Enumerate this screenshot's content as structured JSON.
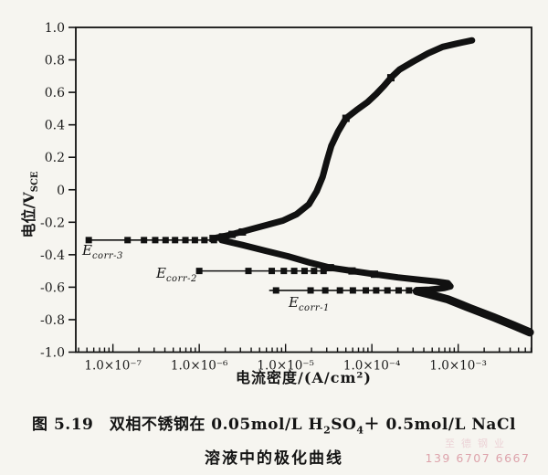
{
  "figure": {
    "caption_line1": {
      "t1": "图 5.19　双相不锈钢在 0.05mol/L H",
      "sub1": "2",
      "t2": "SO",
      "sub2": "4",
      "t3": "＋ 0.5mol/L NaCl"
    },
    "caption_line2": "溶液中的极化曲线",
    "watermark": {
      "line1": "至德钢业",
      "line2": "139 6707 6667"
    }
  },
  "chart_data": {
    "type": "line",
    "title": "",
    "xlabel": "电流密度/(A/cm²)",
    "ylabel_main": "电位/V",
    "ylabel_sub": "SCE",
    "x_scale": "log10",
    "grid": false,
    "legend": "none",
    "xlim": [
      -7.43,
      -2.15
    ],
    "ylim": [
      -1.0,
      1.0
    ],
    "x_ticks": [
      {
        "exp": -7,
        "label": "1.0×10⁻⁷"
      },
      {
        "exp": -6,
        "label": "1.0×10⁻⁶"
      },
      {
        "exp": -5,
        "label": "1.0×10⁻⁵"
      },
      {
        "exp": -4,
        "label": "1.0×10⁻⁴"
      },
      {
        "exp": -3,
        "label": "1.0×10⁻³"
      }
    ],
    "y_ticks": [
      {
        "v": 1.0,
        "label": "1.0"
      },
      {
        "v": 0.8,
        "label": "0.8"
      },
      {
        "v": 0.6,
        "label": "0.6"
      },
      {
        "v": 0.4,
        "label": "0.4"
      },
      {
        "v": 0.2,
        "label": "0.2"
      },
      {
        "v": 0.0,
        "label": "0"
      },
      {
        "v": -0.2,
        "label": "-0.2"
      },
      {
        "v": -0.4,
        "label": "-0.4"
      },
      {
        "v": -0.6,
        "label": "-0.6"
      },
      {
        "v": -0.8,
        "label": "-0.8"
      },
      {
        "v": -1.0,
        "label": "-1.0"
      }
    ],
    "series": [
      {
        "name": "ocp-line-Ecorr-3",
        "E": -0.31,
        "from": -7.28,
        "to": -5.73,
        "markers": [
          -7.28,
          -6.83,
          -6.64,
          -6.51,
          -6.39,
          -6.28,
          -6.16,
          -6.05,
          -5.94,
          -5.83
        ]
      },
      {
        "name": "ocp-line-Ecorr-2",
        "E": -0.5,
        "from": -6.0,
        "to": -4.52,
        "markers": [
          -6.0,
          -5.43,
          -5.16,
          -5.02,
          -4.9,
          -4.78,
          -4.67,
          -4.56
        ]
      },
      {
        "name": "ocp-line-Ecorr-1",
        "E": -0.62,
        "from": -5.19,
        "to": -3.48,
        "markers": [
          -5.11,
          -4.71,
          -4.54,
          -4.37,
          -4.22,
          -4.07,
          -3.95,
          -3.82,
          -3.69,
          -3.57
        ]
      },
      {
        "name": "anodic-passive-branch",
        "width": 7,
        "points": [
          [
            -5.84,
            -0.3
          ],
          [
            -5.66,
            -0.28
          ],
          [
            -5.45,
            -0.25
          ],
          [
            -5.24,
            -0.22
          ],
          [
            -5.03,
            -0.19
          ],
          [
            -4.87,
            -0.15
          ],
          [
            -4.73,
            -0.09
          ],
          [
            -4.64,
            -0.01
          ],
          [
            -4.57,
            0.08
          ],
          [
            -4.52,
            0.18
          ],
          [
            -4.47,
            0.27
          ],
          [
            -4.39,
            0.36
          ],
          [
            -4.3,
            0.44
          ],
          [
            -4.18,
            0.49
          ],
          [
            -4.05,
            0.54
          ],
          [
            -3.95,
            0.59
          ],
          [
            -3.86,
            0.64
          ],
          [
            -3.78,
            0.69
          ],
          [
            -3.68,
            0.74
          ],
          [
            -3.52,
            0.79
          ],
          [
            -3.35,
            0.84
          ],
          [
            -3.18,
            0.88
          ],
          [
            -3.02,
            0.9
          ],
          [
            -2.84,
            0.92
          ]
        ],
        "squares": [
          [
            -5.84,
            -0.3
          ],
          [
            -5.73,
            -0.29
          ],
          [
            -5.62,
            -0.275
          ],
          [
            -5.5,
            -0.26
          ],
          [
            -4.3,
            0.44
          ],
          [
            -3.78,
            0.69
          ]
        ]
      },
      {
        "name": "cathodic-branch-hairpin",
        "width": 7,
        "points": [
          [
            -5.74,
            -0.31
          ],
          [
            -5.5,
            -0.34
          ],
          [
            -5.24,
            -0.375
          ],
          [
            -4.97,
            -0.41
          ],
          [
            -4.71,
            -0.45
          ],
          [
            -4.48,
            -0.48
          ],
          [
            -4.23,
            -0.5
          ],
          [
            -3.97,
            -0.52
          ],
          [
            -3.7,
            -0.54
          ],
          [
            -3.44,
            -0.555
          ],
          [
            -3.25,
            -0.565
          ],
          [
            -3.12,
            -0.575
          ],
          [
            -3.09,
            -0.595
          ],
          [
            -3.16,
            -0.605
          ],
          [
            -3.33,
            -0.615
          ],
          [
            -3.48,
            -0.618
          ]
        ],
        "squares": [
          [
            -4.48,
            -0.48
          ],
          [
            -4.23,
            -0.5
          ],
          [
            -3.97,
            -0.52
          ]
        ]
      },
      {
        "name": "cathodic-tafel-branch",
        "width": 9,
        "points": [
          [
            -3.48,
            -0.625
          ],
          [
            -3.33,
            -0.645
          ],
          [
            -3.12,
            -0.675
          ],
          [
            -2.86,
            -0.73
          ],
          [
            -2.59,
            -0.785
          ],
          [
            -2.36,
            -0.835
          ],
          [
            -2.17,
            -0.878
          ]
        ],
        "squares": []
      }
    ],
    "ecorr_labels": [
      {
        "main": "E",
        "sub": "corr-3"
      },
      {
        "main": "E",
        "sub": "corr-2"
      },
      {
        "main": "E",
        "sub": "corr-1"
      }
    ]
  }
}
